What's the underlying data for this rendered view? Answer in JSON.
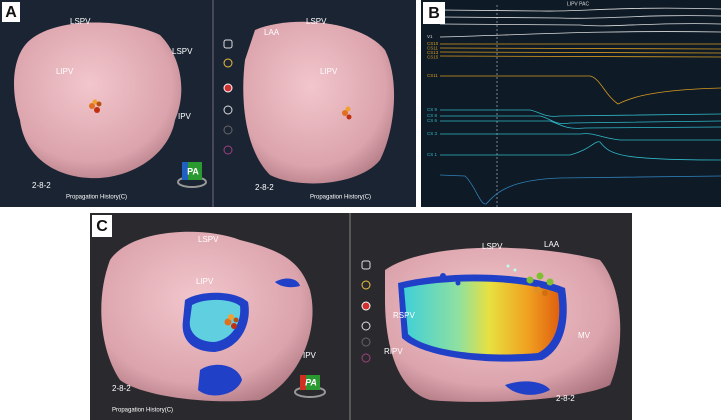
{
  "panels": {
    "A": {
      "label": "A",
      "left_view": {
        "labels": [
          "LSPV",
          "LSPV",
          "LIPV",
          "IPV"
        ],
        "code": "2-8-2",
        "footer": "Propagation History(C)",
        "badge": "PA"
      },
      "right_view": {
        "labels": [
          "LAA",
          "LSPV",
          "LIPV"
        ],
        "code": "2-8-2",
        "footer": "Propagation History(C)"
      }
    },
    "B": {
      "label": "B",
      "title": "LIPV PAC",
      "channels": [
        "V1",
        "CS10",
        "CS11",
        "CS13",
        "CS15",
        "CS11",
        "CS 9",
        "CS 8",
        "CS 6",
        "CS 3",
        "CS 1"
      ]
    },
    "C": {
      "label": "C",
      "left_view": {
        "labels": [
          "LSPV",
          "LIPV",
          "IPV"
        ],
        "code": "2-8-2",
        "footer": "Propagation History(C)",
        "badge": "PA"
      },
      "right_view": {
        "labels": [
          "LSPV",
          "LAA",
          "RSPV",
          "RIPV",
          "MV"
        ],
        "code": "2-8-2"
      }
    }
  }
}
